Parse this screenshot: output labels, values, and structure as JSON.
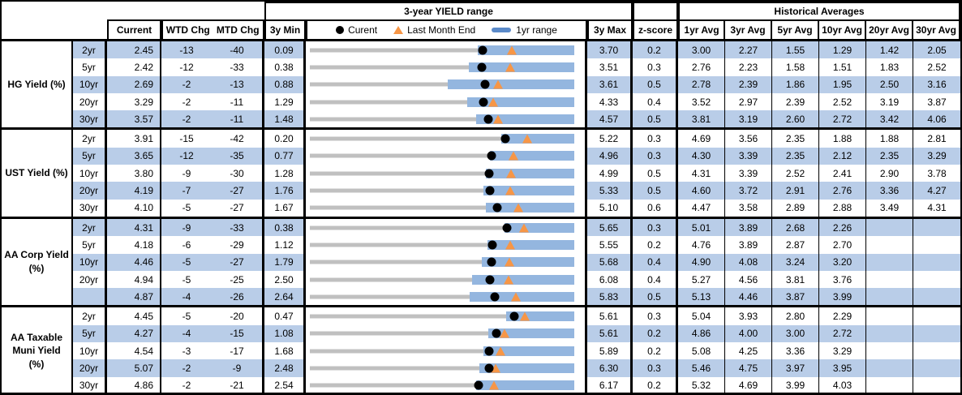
{
  "header": {
    "yield_range_title": "3-year YIELD range",
    "historical_title": "Historical Averages",
    "current": "Current",
    "wtd": "WTD Chg",
    "mtd": "MTD Chg",
    "y3min": "3y Min",
    "y3max": "3y Max",
    "z": "z-score",
    "avgs": [
      "1yr Avg",
      "3yr Avg",
      "5yr Avg",
      "10yr Avg",
      "20yr Avg",
      "30yr Avg"
    ],
    "legend_current": "Curent",
    "legend_lme": "Last Month End",
    "legend_range": "1yr range"
  },
  "colors": {
    "stripe": "#b9cde8",
    "range_bar_blue": "#94b6df",
    "legend_bar_blue": "#5b8ac9",
    "track_gray": "#c0c0c0",
    "marker_orange": "#f79646",
    "marker_black": "#000000"
  },
  "chart_data": {
    "type": "table",
    "title": "3-year YIELD range",
    "legend": [
      "Curent",
      "Last Month End",
      "1yr range"
    ],
    "groups": [
      {
        "label_lines": [
          "HG Yield (%)"
        ],
        "rows": [
          {
            "tenor": "2yr",
            "current": 2.45,
            "wtd_chg": -13,
            "mtd_chg": -40,
            "y3_min": 0.09,
            "y3_max": 3.7,
            "z_score": 0.2,
            "last_month_end": 2.85,
            "y1_min": 2.38,
            "y1_max": 3.7,
            "avgs": [
              "3.00",
              "2.27",
              "1.55",
              "1.29",
              "1.42",
              "2.05"
            ]
          },
          {
            "tenor": "5yr",
            "current": 2.42,
            "wtd_chg": -12,
            "mtd_chg": -33,
            "y3_min": 0.38,
            "y3_max": 3.51,
            "z_score": 0.3,
            "last_month_end": 2.75,
            "y1_min": 2.26,
            "y1_max": 3.51,
            "avgs": [
              "2.76",
              "2.23",
              "1.58",
              "1.51",
              "1.83",
              "2.52"
            ]
          },
          {
            "tenor": "10yr",
            "current": 2.69,
            "wtd_chg": -2,
            "mtd_chg": -13,
            "y3_min": 0.88,
            "y3_max": 3.61,
            "z_score": 0.5,
            "last_month_end": 2.82,
            "y1_min": 2.3,
            "y1_max": 3.61,
            "avgs": [
              "2.78",
              "2.39",
              "1.86",
              "1.95",
              "2.50",
              "3.16"
            ]
          },
          {
            "tenor": "20yr",
            "current": 3.29,
            "wtd_chg": -2,
            "mtd_chg": -11,
            "y3_min": 1.29,
            "y3_max": 4.33,
            "z_score": 0.4,
            "last_month_end": 3.4,
            "y1_min": 3.1,
            "y1_max": 4.33,
            "avgs": [
              "3.52",
              "2.97",
              "2.39",
              "2.52",
              "3.19",
              "3.87"
            ]
          },
          {
            "tenor": "30yr",
            "current": 3.57,
            "wtd_chg": -2,
            "mtd_chg": -11,
            "y3_min": 1.48,
            "y3_max": 4.57,
            "z_score": 0.5,
            "last_month_end": 3.68,
            "y1_min": 3.42,
            "y1_max": 4.57,
            "avgs": [
              "3.81",
              "3.19",
              "2.60",
              "2.72",
              "3.42",
              "4.06"
            ]
          }
        ]
      },
      {
        "label_lines": [
          "UST Yield (%)"
        ],
        "rows": [
          {
            "tenor": "2yr",
            "current": 3.91,
            "wtd_chg": -15,
            "mtd_chg": -42,
            "y3_min": 0.2,
            "y3_max": 5.22,
            "z_score": 0.3,
            "last_month_end": 4.33,
            "y1_min": 3.84,
            "y1_max": 5.22,
            "avgs": [
              "4.69",
              "3.56",
              "2.35",
              "1.88",
              "1.88",
              "2.81"
            ]
          },
          {
            "tenor": "5yr",
            "current": 3.65,
            "wtd_chg": -12,
            "mtd_chg": -35,
            "y3_min": 0.77,
            "y3_max": 4.96,
            "z_score": 0.3,
            "last_month_end": 4.0,
            "y1_min": 3.62,
            "y1_max": 4.96,
            "avgs": [
              "4.30",
              "3.39",
              "2.35",
              "2.12",
              "2.35",
              "3.29"
            ]
          },
          {
            "tenor": "10yr",
            "current": 3.8,
            "wtd_chg": -9,
            "mtd_chg": -30,
            "y3_min": 1.28,
            "y3_max": 4.99,
            "z_score": 0.5,
            "last_month_end": 4.1,
            "y1_min": 3.75,
            "y1_max": 4.99,
            "avgs": [
              "4.31",
              "3.39",
              "2.52",
              "2.41",
              "2.90",
              "3.78"
            ]
          },
          {
            "tenor": "20yr",
            "current": 4.19,
            "wtd_chg": -7,
            "mtd_chg": -27,
            "y3_min": 1.76,
            "y3_max": 5.33,
            "z_score": 0.5,
            "last_month_end": 4.46,
            "y1_min": 4.1,
            "y1_max": 5.33,
            "avgs": [
              "4.60",
              "3.72",
              "2.91",
              "2.76",
              "3.36",
              "4.27"
            ]
          },
          {
            "tenor": "30yr",
            "current": 4.1,
            "wtd_chg": -5,
            "mtd_chg": -27,
            "y3_min": 1.67,
            "y3_max": 5.1,
            "z_score": 0.6,
            "last_month_end": 4.37,
            "y1_min": 3.95,
            "y1_max": 5.1,
            "avgs": [
              "4.47",
              "3.58",
              "2.89",
              "2.88",
              "3.49",
              "4.31"
            ]
          }
        ]
      },
      {
        "label_lines": [
          "AA Corp Yield",
          "(%)"
        ],
        "rows": [
          {
            "tenor": "2yr",
            "current": 4.31,
            "wtd_chg": -9,
            "mtd_chg": -33,
            "y3_min": 0.38,
            "y3_max": 5.65,
            "z_score": 0.3,
            "last_month_end": 4.64,
            "y1_min": 4.26,
            "y1_max": 5.65,
            "avgs": [
              "5.01",
              "3.89",
              "2.68",
              "2.26",
              "",
              ""
            ]
          },
          {
            "tenor": "5yr",
            "current": 4.18,
            "wtd_chg": -6,
            "mtd_chg": -29,
            "y3_min": 1.12,
            "y3_max": 5.55,
            "z_score": 0.2,
            "last_month_end": 4.47,
            "y1_min": 4.1,
            "y1_max": 5.55,
            "avgs": [
              "4.76",
              "3.89",
              "2.87",
              "2.70",
              "",
              ""
            ]
          },
          {
            "tenor": "10yr",
            "current": 4.46,
            "wtd_chg": -5,
            "mtd_chg": -27,
            "y3_min": 1.79,
            "y3_max": 5.68,
            "z_score": 0.4,
            "last_month_end": 4.73,
            "y1_min": 4.32,
            "y1_max": 5.68,
            "avgs": [
              "4.90",
              "4.08",
              "3.24",
              "3.20",
              "",
              ""
            ]
          },
          {
            "tenor": "20yr",
            "current": 4.94,
            "wtd_chg": -5,
            "mtd_chg": -25,
            "y3_min": 2.5,
            "y3_max": 6.08,
            "z_score": 0.4,
            "last_month_end": 5.19,
            "y1_min": 4.7,
            "y1_max": 6.08,
            "avgs": [
              "5.27",
              "4.56",
              "3.81",
              "3.76",
              "",
              ""
            ]
          },
          {
            "tenor": "",
            "current": 4.87,
            "wtd_chg": -4,
            "mtd_chg": -26,
            "y3_min": 2.64,
            "y3_max": 5.83,
            "z_score": 0.5,
            "last_month_end": 5.13,
            "y1_min": 4.57,
            "y1_max": 5.83,
            "avgs": [
              "5.13",
              "4.46",
              "3.87",
              "3.99",
              "",
              ""
            ]
          }
        ]
      },
      {
        "label_lines": [
          "AA Taxable",
          "Muni Yield",
          "(%)"
        ],
        "rows": [
          {
            "tenor": "2yr",
            "current": 4.45,
            "wtd_chg": -5,
            "mtd_chg": -20,
            "y3_min": 0.47,
            "y3_max": 5.61,
            "z_score": 0.3,
            "last_month_end": 4.65,
            "y1_min": 4.29,
            "y1_max": 5.61,
            "avgs": [
              "5.04",
              "3.93",
              "2.80",
              "2.29",
              "",
              ""
            ]
          },
          {
            "tenor": "5yr",
            "current": 4.27,
            "wtd_chg": -4,
            "mtd_chg": -15,
            "y3_min": 1.08,
            "y3_max": 5.61,
            "z_score": 0.2,
            "last_month_end": 4.42,
            "y1_min": 4.14,
            "y1_max": 5.61,
            "avgs": [
              "4.86",
              "4.00",
              "3.00",
              "2.72",
              "",
              ""
            ]
          },
          {
            "tenor": "10yr",
            "current": 4.54,
            "wtd_chg": -3,
            "mtd_chg": -17,
            "y3_min": 1.68,
            "y3_max": 5.89,
            "z_score": 0.2,
            "last_month_end": 4.71,
            "y1_min": 4.44,
            "y1_max": 5.89,
            "avgs": [
              "5.08",
              "4.25",
              "3.36",
              "3.29",
              "",
              ""
            ]
          },
          {
            "tenor": "20yr",
            "current": 5.07,
            "wtd_chg": -2,
            "mtd_chg": -9,
            "y3_min": 2.48,
            "y3_max": 6.3,
            "z_score": 0.3,
            "last_month_end": 5.16,
            "y1_min": 4.93,
            "y1_max": 6.3,
            "avgs": [
              "5.46",
              "4.75",
              "3.97",
              "3.95",
              "",
              ""
            ]
          },
          {
            "tenor": "30yr",
            "current": 4.86,
            "wtd_chg": -2,
            "mtd_chg": -21,
            "y3_min": 2.54,
            "y3_max": 6.17,
            "z_score": 0.2,
            "last_month_end": 5.07,
            "y1_min": 4.82,
            "y1_max": 6.17,
            "avgs": [
              "5.32",
              "4.69",
              "3.99",
              "4.03",
              "",
              ""
            ]
          }
        ]
      }
    ]
  }
}
